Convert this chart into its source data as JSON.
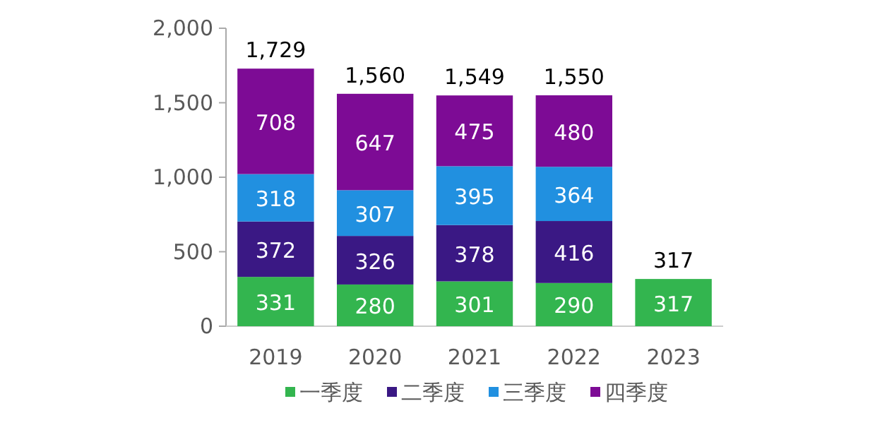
{
  "chart_data": {
    "type": "bar",
    "stacked": true,
    "categories": [
      "2019",
      "2020",
      "2021",
      "2022",
      "2023"
    ],
    "series": [
      {
        "name": "一季度",
        "color": "#33b54f",
        "values": [
          331,
          280,
          301,
          290,
          317
        ]
      },
      {
        "name": "二季度",
        "color": "#3a1884",
        "values": [
          372,
          326,
          378,
          416,
          null
        ]
      },
      {
        "name": "三季度",
        "color": "#2190e0",
        "values": [
          318,
          307,
          395,
          364,
          null
        ]
      },
      {
        "name": "四季度",
        "color": "#7d0b95",
        "values": [
          708,
          647,
          475,
          480,
          null
        ]
      }
    ],
    "totals": [
      "1,729",
      "1,560",
      "1,549",
      "1,550",
      "317"
    ],
    "data_labels": true,
    "ylim": [
      0,
      2000
    ],
    "yticks": [
      {
        "value": 0,
        "label": "0"
      },
      {
        "value": 500,
        "label": "500"
      },
      {
        "value": 1000,
        "label": "1,000"
      },
      {
        "value": 1500,
        "label": "1,500"
      },
      {
        "value": 2000,
        "label": "2,000"
      }
    ],
    "grid": false,
    "legend": "bottom"
  }
}
